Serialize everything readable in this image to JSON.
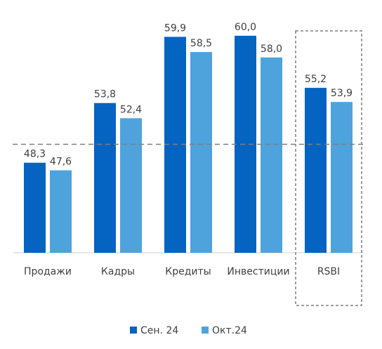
{
  "chart_data": {
    "type": "bar",
    "categories": [
      "Продажи",
      "Кадры",
      "Кредиты",
      "Инвестиции",
      "RSBI"
    ],
    "series": [
      {
        "name": "Сен. 24",
        "values": [
          48.3,
          53.8,
          59.9,
          60.0,
          55.2
        ],
        "labels": [
          "48,3",
          "53,8",
          "59,9",
          "60,0",
          "55,2"
        ],
        "color": "#0563C1"
      },
      {
        "name": "Окт.24",
        "values": [
          47.6,
          52.4,
          58.5,
          58.0,
          53.9
        ],
        "labels": [
          "47,6",
          "52,4",
          "58,5",
          "58,0",
          "53,9"
        ],
        "color": "#4FA3DC"
      }
    ],
    "ylim": [
      40,
      62
    ],
    "reference_line": 50,
    "highlighted_category": "RSBI",
    "legend_position": "bottom",
    "grid": false,
    "title": "",
    "xlabel": "",
    "ylabel": ""
  }
}
